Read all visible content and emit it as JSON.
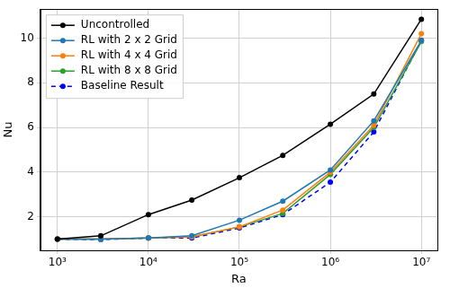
{
  "chart_data": {
    "type": "line",
    "x_label": "Ra",
    "y_label": "Nu",
    "x": [
      1000,
      3000,
      10000,
      30000,
      100000,
      300000,
      1000000,
      3000000,
      10000000
    ],
    "series": [
      {
        "name": "Uncontrolled",
        "color": "#000000",
        "values": [
          1.0,
          1.15,
          2.1,
          2.75,
          3.75,
          4.75,
          6.15,
          7.5,
          10.85
        ]
      },
      {
        "name": "RL with 2 x 2 Grid",
        "color": "#1f77b4",
        "values": [
          1.0,
          1.0,
          1.05,
          1.15,
          1.85,
          2.7,
          4.1,
          6.3,
          9.9
        ]
      },
      {
        "name": "RL with 4 x 4 Grid",
        "color": "#ff7f0e",
        "values": [
          1.0,
          1.0,
          1.05,
          1.1,
          1.55,
          2.3,
          4.0,
          6.1,
          10.2
        ]
      },
      {
        "name": "RL with 8 x 8 Grid",
        "color": "#2ca02c",
        "values": [
          1.0,
          1.0,
          1.05,
          1.1,
          1.55,
          2.15,
          3.9,
          6.0,
          9.85
        ]
      },
      {
        "name": "Baseline Result",
        "color": "#0000ff",
        "line_style": "dashed",
        "values": [
          1.0,
          0.98,
          1.05,
          1.05,
          1.5,
          2.1,
          3.55,
          5.8,
          9.9
        ]
      }
    ],
    "marker": "circle",
    "log": "x",
    "xlim": [
      650,
      15000000
    ],
    "xticks": [
      {
        "value": 1000,
        "label": "10³"
      },
      {
        "value": 10000,
        "label": "10⁴"
      },
      {
        "value": 100000,
        "label": "10⁵"
      },
      {
        "value": 1000000,
        "label": "10⁶"
      },
      {
        "value": 10000000,
        "label": "10⁷"
      }
    ],
    "ylim": [
      0.5,
      11.3
    ],
    "yticks": [
      2,
      4,
      6,
      8,
      10
    ],
    "grid": true,
    "legend": "upper left"
  }
}
